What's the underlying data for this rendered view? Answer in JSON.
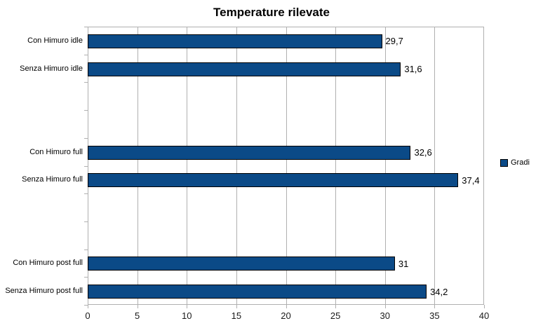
{
  "chart_data": {
    "type": "bar",
    "orientation": "horizontal",
    "title": "Temperature rilevate",
    "series_name": "Gradi",
    "legend": {
      "label": "Gradi",
      "position": "right"
    },
    "categories": [
      "Con Himuro idle",
      "Senza Himuro idle",
      "",
      "",
      "Con Himuro full",
      "Senza Himuro full",
      "",
      "",
      "Con Himuro post full",
      "Senza Himuro post full"
    ],
    "values": [
      29.7,
      31.6,
      null,
      null,
      32.6,
      37.4,
      null,
      null,
      31,
      34.2
    ],
    "value_labels": [
      "29,7",
      "31,6",
      null,
      null,
      "32,6",
      "37,4",
      null,
      null,
      "31",
      "34,2"
    ],
    "xlabel": "",
    "ylabel": "",
    "xlim": [
      0,
      40
    ],
    "xticks": [
      0,
      5,
      10,
      15,
      20,
      25,
      30,
      35,
      40
    ],
    "xtick_labels": [
      "0",
      "5",
      "10",
      "15",
      "20",
      "25",
      "30",
      "35",
      "40"
    ],
    "grid": "vertical",
    "colors": {
      "bar": "#0b4a87",
      "bar_border": "#000000",
      "grid": "#b0b0b0",
      "text": "#000000",
      "background": "#ffffff"
    }
  }
}
